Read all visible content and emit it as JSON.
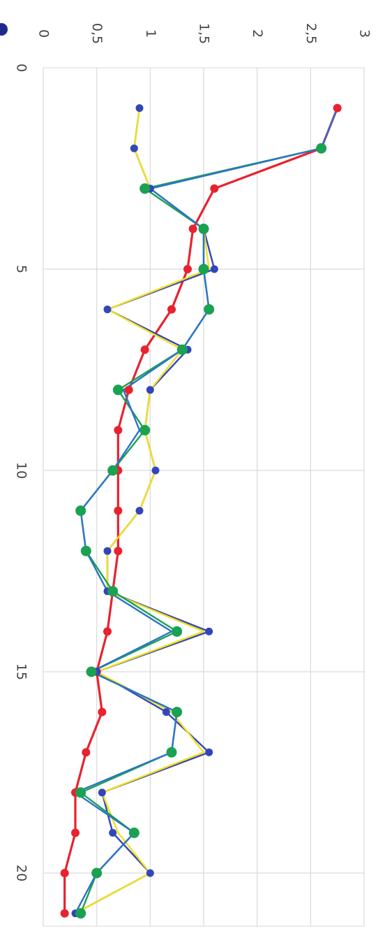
{
  "chart_data": {
    "type": "line",
    "orientation": "rotated-90-clockwise",
    "xlim": [
      0,
      21
    ],
    "ylim": [
      0,
      3
    ],
    "x_ticks": [
      "0",
      "5",
      "10",
      "15",
      "20"
    ],
    "y_ticks": [
      "0",
      "0,5",
      "1",
      "1,5",
      "2",
      "2,5",
      "3"
    ],
    "grid": true,
    "series": [
      {
        "color": "#e8222e",
        "marker": "circle",
        "x": [
          1,
          2,
          3,
          4,
          5,
          6,
          7,
          8,
          9,
          10,
          11,
          12,
          13,
          14,
          15,
          16,
          17,
          18,
          19,
          20,
          21
        ],
        "values": [
          2.75,
          2.6,
          1.6,
          1.4,
          1.35,
          1.2,
          0.95,
          0.8,
          0.7,
          0.7,
          0.7,
          0.7,
          0.65,
          0.6,
          0.5,
          0.55,
          0.4,
          0.3,
          0.3,
          0.2,
          0.2
        ]
      },
      {
        "color": "#3346b8",
        "marker": "circle",
        "x": [
          1,
          2,
          3,
          4,
          5,
          6,
          7,
          8,
          9,
          10,
          11,
          12,
          13,
          14,
          15,
          16,
          17,
          18,
          19,
          20,
          21
        ],
        "values": [
          0.9,
          0.85,
          1.0,
          1.5,
          1.6,
          0.6,
          1.35,
          1.0,
          0.95,
          1.05,
          0.9,
          0.6,
          0.6,
          1.55,
          0.5,
          1.15,
          1.55,
          0.55,
          0.65,
          1.0,
          0.3
        ]
      },
      {
        "color": "#f2e01c",
        "marker": "none",
        "x": [
          1,
          2,
          3,
          4,
          5,
          6,
          7,
          8,
          9,
          10,
          11,
          12,
          13,
          14,
          15,
          16,
          17,
          18,
          19,
          20,
          21
        ],
        "values": [
          0.9,
          0.85,
          1.0,
          1.5,
          1.55,
          0.6,
          1.3,
          1.0,
          0.95,
          1.05,
          0.9,
          0.6,
          0.6,
          1.5,
          0.5,
          1.2,
          1.5,
          0.55,
          0.7,
          1.0,
          0.3
        ]
      },
      {
        "color": "#1aa152",
        "marker": "circle",
        "x": [
          2,
          3,
          4,
          5,
          6,
          7,
          8,
          9,
          10,
          11,
          12,
          13,
          14,
          15,
          16,
          17,
          18,
          19,
          20,
          21
        ],
        "values": [
          2.6,
          0.95,
          1.5,
          1.5,
          1.55,
          1.3,
          0.7,
          0.95,
          0.65,
          0.35,
          0.4,
          0.65,
          1.25,
          0.45,
          1.25,
          1.2,
          0.35,
          0.85,
          0.5,
          0.35
        ]
      },
      {
        "color": "#2c73c9",
        "marker": "none",
        "x": [
          1,
          2,
          3,
          4,
          5,
          6,
          7,
          8,
          9,
          10,
          11,
          12,
          13,
          14,
          15,
          16,
          17,
          18,
          19,
          20,
          21
        ],
        "values": [
          2.75,
          2.6,
          1.0,
          1.5,
          1.5,
          1.55,
          1.3,
          0.75,
          0.9,
          0.65,
          0.35,
          0.4,
          0.6,
          1.2,
          0.45,
          1.25,
          1.2,
          0.3,
          0.85,
          0.5,
          0.3
        ]
      }
    ]
  }
}
